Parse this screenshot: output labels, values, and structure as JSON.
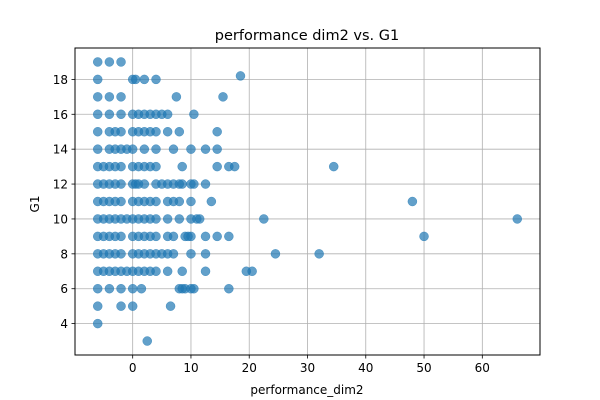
{
  "chart_data": {
    "type": "scatter",
    "title": "performance dim2 vs. G1",
    "xlabel": "performance_dim2",
    "ylabel": "G1",
    "xlim": [
      -9.9,
      69.9
    ],
    "ylim": [
      2.2,
      19.8
    ],
    "xticks": [
      0,
      10,
      20,
      30,
      40,
      50,
      60
    ],
    "yticks": [
      4,
      6,
      8,
      10,
      12,
      14,
      16,
      18
    ],
    "grid": true,
    "marker_color": "#1f77b4",
    "marker_alpha": 0.7,
    "points": [
      [
        -6,
        19
      ],
      [
        -4,
        19
      ],
      [
        -2,
        19
      ],
      [
        -6,
        18
      ],
      [
        0,
        18
      ],
      [
        0.5,
        18
      ],
      [
        2,
        18
      ],
      [
        4,
        18
      ],
      [
        18.5,
        18.2
      ],
      [
        -6,
        17
      ],
      [
        -4,
        17
      ],
      [
        -2,
        17
      ],
      [
        7.5,
        17
      ],
      [
        15.5,
        17
      ],
      [
        -6,
        16
      ],
      [
        -4,
        16
      ],
      [
        -2,
        16
      ],
      [
        0,
        16
      ],
      [
        1,
        16
      ],
      [
        2,
        16
      ],
      [
        3,
        16
      ],
      [
        4,
        16
      ],
      [
        5,
        16
      ],
      [
        6,
        16
      ],
      [
        10.5,
        16
      ],
      [
        -6,
        15
      ],
      [
        -4,
        15
      ],
      [
        -3,
        15
      ],
      [
        -2,
        15
      ],
      [
        0,
        15
      ],
      [
        1,
        15
      ],
      [
        2,
        15
      ],
      [
        3,
        15
      ],
      [
        4,
        15
      ],
      [
        6,
        15
      ],
      [
        8,
        15
      ],
      [
        14.5,
        15
      ],
      [
        -6,
        14
      ],
      [
        -4,
        14
      ],
      [
        -3,
        14
      ],
      [
        -2,
        14
      ],
      [
        -1,
        14
      ],
      [
        0,
        14
      ],
      [
        2,
        14
      ],
      [
        4,
        14
      ],
      [
        7,
        14
      ],
      [
        10,
        14
      ],
      [
        12.5,
        14
      ],
      [
        14.5,
        14
      ],
      [
        -6,
        13
      ],
      [
        -5,
        13
      ],
      [
        -4,
        13
      ],
      [
        -3,
        13
      ],
      [
        -2,
        13
      ],
      [
        0,
        13
      ],
      [
        1,
        13
      ],
      [
        2,
        13
      ],
      [
        3,
        13
      ],
      [
        4,
        13
      ],
      [
        8.5,
        13
      ],
      [
        14.5,
        13
      ],
      [
        16.5,
        13
      ],
      [
        17.5,
        13
      ],
      [
        34.5,
        13
      ],
      [
        -6,
        12
      ],
      [
        -5,
        12
      ],
      [
        -4,
        12
      ],
      [
        -3,
        12
      ],
      [
        -2,
        12
      ],
      [
        0,
        12
      ],
      [
        0.5,
        12
      ],
      [
        1,
        12
      ],
      [
        2,
        12
      ],
      [
        4,
        12
      ],
      [
        5,
        12
      ],
      [
        6,
        12
      ],
      [
        7,
        12
      ],
      [
        8,
        12
      ],
      [
        8.5,
        12
      ],
      [
        10,
        12
      ],
      [
        10.5,
        12
      ],
      [
        12.5,
        12
      ],
      [
        -6,
        11
      ],
      [
        -5,
        11
      ],
      [
        -4,
        11
      ],
      [
        -3,
        11
      ],
      [
        -2,
        11
      ],
      [
        0,
        11
      ],
      [
        1,
        11
      ],
      [
        2,
        11
      ],
      [
        3,
        11
      ],
      [
        4,
        11
      ],
      [
        6,
        11
      ],
      [
        7,
        11
      ],
      [
        8,
        11
      ],
      [
        10,
        11
      ],
      [
        13.5,
        11
      ],
      [
        48,
        11
      ],
      [
        -6,
        10
      ],
      [
        -5,
        10
      ],
      [
        -4,
        10
      ],
      [
        -3,
        10
      ],
      [
        -2,
        10
      ],
      [
        -1,
        10
      ],
      [
        0,
        10
      ],
      [
        1,
        10
      ],
      [
        2,
        10
      ],
      [
        3,
        10
      ],
      [
        4,
        10
      ],
      [
        6,
        10
      ],
      [
        8,
        10
      ],
      [
        10,
        10
      ],
      [
        11,
        10
      ],
      [
        11.5,
        10
      ],
      [
        22.5,
        10
      ],
      [
        66,
        10
      ],
      [
        -6,
        9
      ],
      [
        -5,
        9
      ],
      [
        -4,
        9
      ],
      [
        -3,
        9
      ],
      [
        -2,
        9
      ],
      [
        0,
        9
      ],
      [
        1,
        9
      ],
      [
        2,
        9
      ],
      [
        3,
        9
      ],
      [
        4,
        9
      ],
      [
        6,
        9
      ],
      [
        7,
        9
      ],
      [
        9,
        9
      ],
      [
        9.5,
        9
      ],
      [
        10,
        9
      ],
      [
        12.5,
        9
      ],
      [
        14.5,
        9
      ],
      [
        16.5,
        9
      ],
      [
        50,
        9
      ],
      [
        -6,
        8
      ],
      [
        -5,
        8
      ],
      [
        -4,
        8
      ],
      [
        -3,
        8
      ],
      [
        -2,
        8
      ],
      [
        0,
        8
      ],
      [
        1,
        8
      ],
      [
        2,
        8
      ],
      [
        3,
        8
      ],
      [
        4,
        8
      ],
      [
        5,
        8
      ],
      [
        6,
        8
      ],
      [
        7,
        8
      ],
      [
        10,
        8
      ],
      [
        12.5,
        8
      ],
      [
        24.5,
        8
      ],
      [
        32,
        8
      ],
      [
        -6,
        7
      ],
      [
        -5,
        7
      ],
      [
        -4,
        7
      ],
      [
        -3,
        7
      ],
      [
        -2,
        7
      ],
      [
        -1,
        7
      ],
      [
        0,
        7
      ],
      [
        1,
        7
      ],
      [
        2,
        7
      ],
      [
        3,
        7
      ],
      [
        4,
        7
      ],
      [
        6,
        7
      ],
      [
        8.5,
        7
      ],
      [
        12.5,
        7
      ],
      [
        19.5,
        7
      ],
      [
        20.5,
        7
      ],
      [
        -6,
        6
      ],
      [
        -4,
        6
      ],
      [
        -2,
        6
      ],
      [
        0,
        6
      ],
      [
        1.5,
        6
      ],
      [
        8,
        6
      ],
      [
        8.5,
        6
      ],
      [
        9,
        6
      ],
      [
        10,
        6
      ],
      [
        10.5,
        6
      ],
      [
        16.5,
        6
      ],
      [
        -6,
        5
      ],
      [
        -2,
        5
      ],
      [
        0,
        5
      ],
      [
        6.5,
        5
      ],
      [
        -6,
        4
      ],
      [
        2.5,
        3
      ]
    ]
  }
}
